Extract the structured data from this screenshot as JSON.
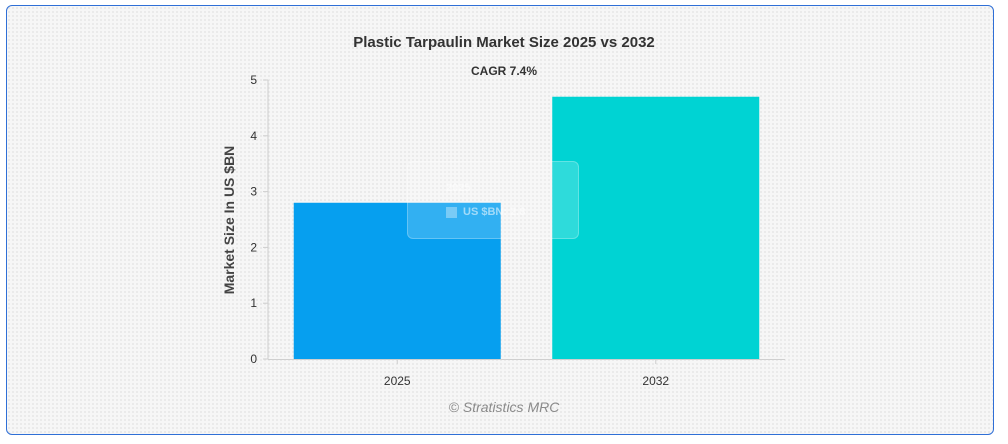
{
  "chart_data": {
    "type": "bar",
    "title": "Plastic Tarpaulin Market Size 2025 vs 2032",
    "subtitle": "CAGR 7.4%",
    "xlabel": "",
    "ylabel": "Market Size In US $BN",
    "categories": [
      "2025",
      "2032"
    ],
    "values": [
      2.8,
      4.7
    ],
    "ylim": [
      0,
      5
    ],
    "yticks": [
      "0",
      "1",
      "2",
      "3",
      "4",
      "5"
    ],
    "colors": [
      "#069fef",
      "#00d3d3"
    ],
    "grid": false,
    "legend": "none",
    "tooltip": {
      "title": "2025",
      "series_label": "US $BN",
      "value_text": "2.8"
    }
  },
  "credit": "© Stratistics MRC"
}
